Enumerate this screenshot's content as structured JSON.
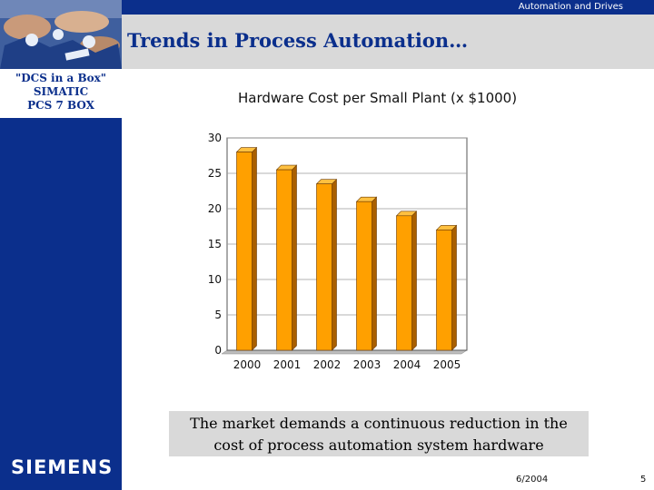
{
  "header": {
    "brand_text": "Automation and Drives",
    "title": "Trends in Process Automation…"
  },
  "sidebar": {
    "line1": "\"DCS in a Box\"",
    "line2": "SIMATIC",
    "line3": "PCS 7 BOX",
    "logo": "SIEMENS"
  },
  "chart_title": "Hardware Cost per Small Plant (x $1000)",
  "chart_data": {
    "type": "bar",
    "categories": [
      "2000",
      "2001",
      "2002",
      "2003",
      "2004",
      "2005"
    ],
    "values": [
      28,
      25.5,
      23.5,
      21,
      19,
      17
    ],
    "ylim": [
      0,
      30
    ],
    "yticks": [
      0,
      5,
      10,
      15,
      20,
      25,
      30
    ],
    "title": "Hardware Cost per Small Plant (x $1000)",
    "xlabel": "",
    "ylabel": "",
    "grid": true,
    "colors": {
      "bar": "#ffa000",
      "bar_side": "#a95f00",
      "bar_top": "#ffc040",
      "edge": "#6b3a00"
    }
  },
  "caption": {
    "line1": "The market demands a continuous reduction in the",
    "line2": "cost of process automation system hardware"
  },
  "footer": {
    "date": "6/2004",
    "page": "5"
  },
  "colors": {
    "primary": "#0b2f8c",
    "band": "#d9d9d9"
  }
}
